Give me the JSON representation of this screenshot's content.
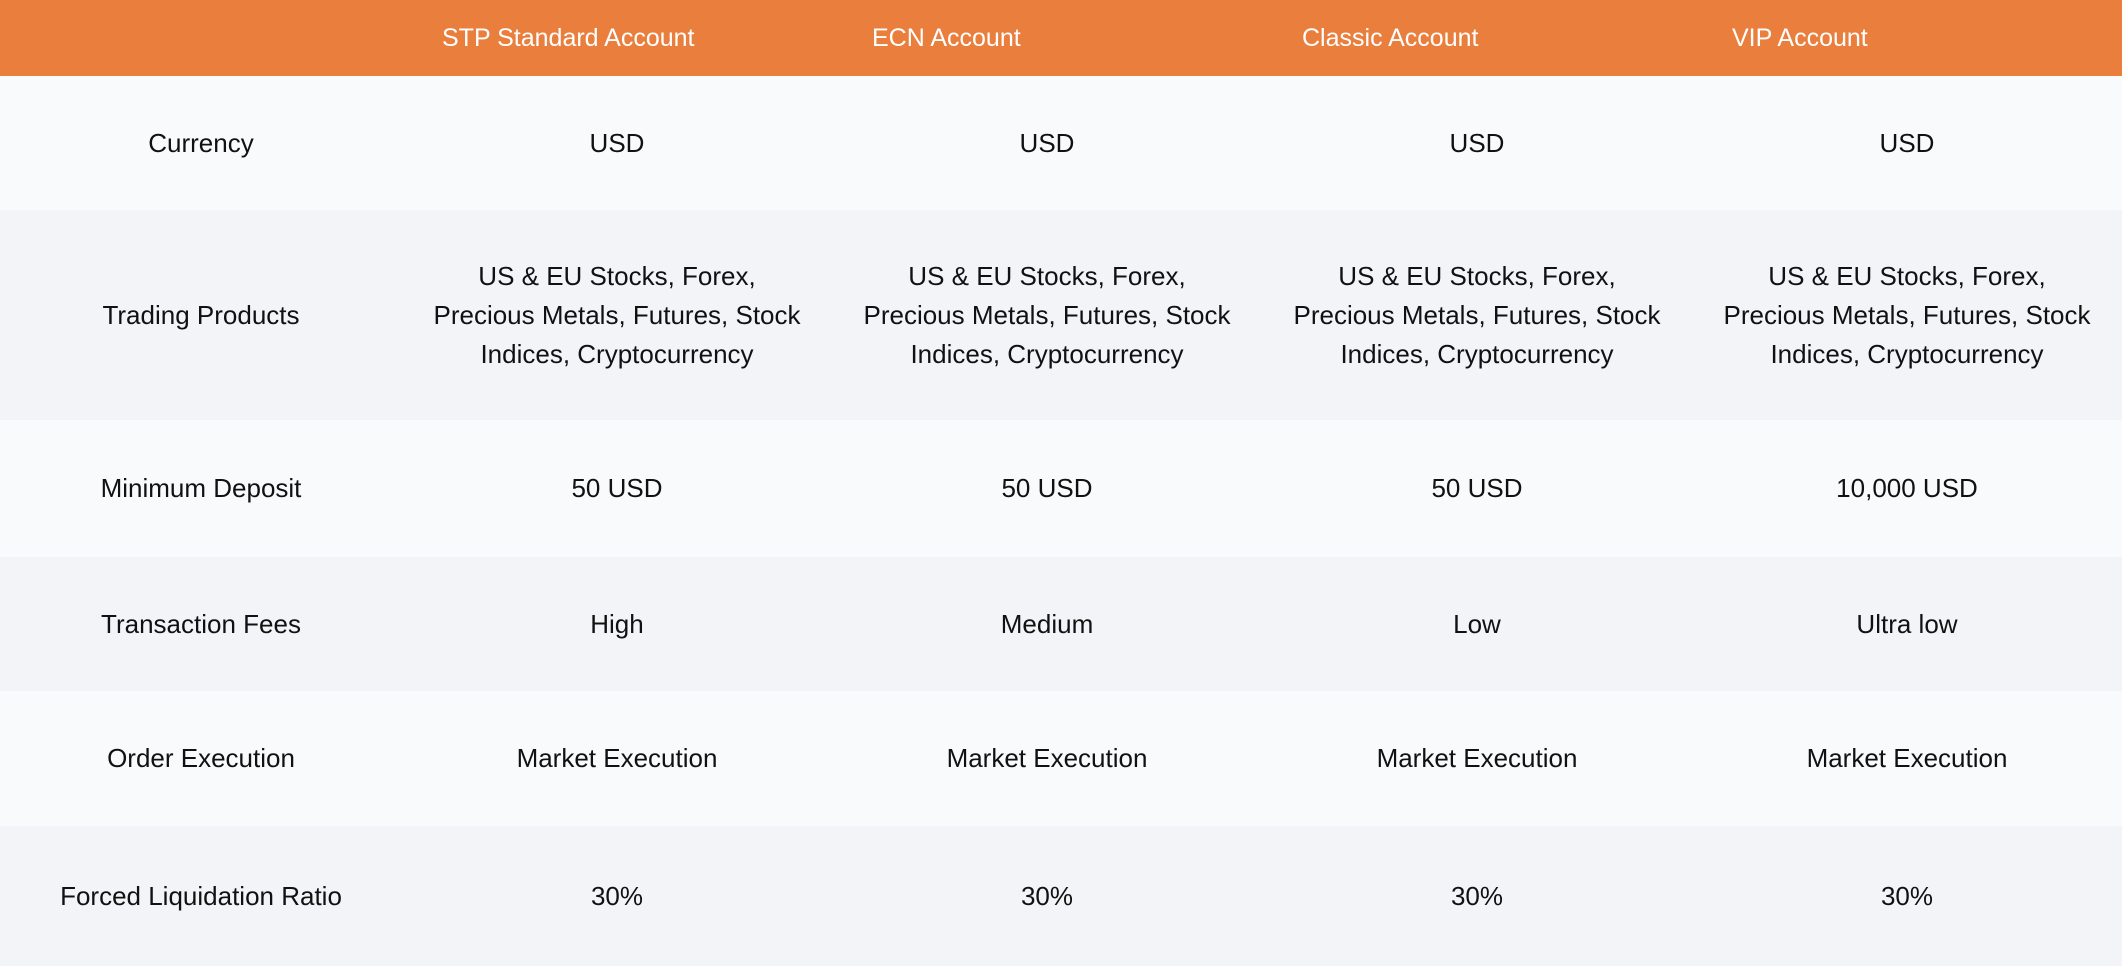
{
  "table": {
    "columns": [
      "STP Standard Account",
      "ECN Account",
      "Classic Account",
      "VIP Account"
    ],
    "rows": [
      {
        "label": "Currency",
        "cells": [
          "USD",
          "USD",
          "USD",
          "USD"
        ]
      },
      {
        "label": "Trading Products",
        "cells": [
          "US & EU Stocks, Forex, Precious Metals, Futures, Stock Indices, Cryptocurrency",
          "US & EU Stocks, Forex, Precious Metals, Futures, Stock Indices, Cryptocurrency",
          "US & EU Stocks, Forex, Precious Metals, Futures, Stock Indices, Cryptocurrency",
          "US & EU Stocks, Forex, Precious Metals, Futures, Stock Indices, Cryptocurrency"
        ]
      },
      {
        "label": "Minimum Deposit",
        "cells": [
          "50 USD",
          "50 USD",
          "50 USD",
          "10,000 USD"
        ]
      },
      {
        "label": "Transaction Fees",
        "cells": [
          "High",
          "Medium",
          "Low",
          "Ultra low"
        ]
      },
      {
        "label": "Order Execution",
        "cells": [
          "Market Execution",
          "Market Execution",
          "Market Execution",
          "Market Execution"
        ]
      },
      {
        "label": "Forced Liquidation Ratio",
        "cells": [
          "30%",
          "30%",
          "30%",
          "30%"
        ]
      }
    ]
  }
}
